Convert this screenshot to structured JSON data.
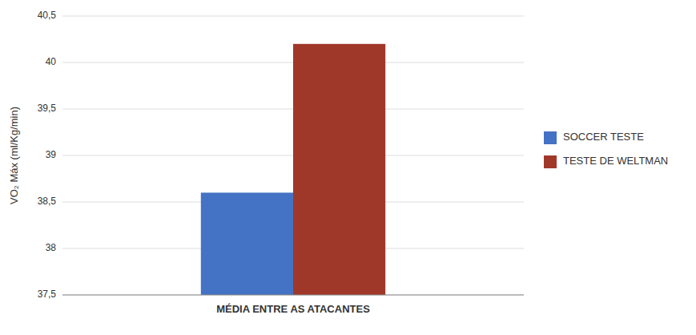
{
  "chart_data": {
    "type": "bar",
    "categories": [
      "MÉDIA ENTRE AS ATACANTES"
    ],
    "series": [
      {
        "name": "SOCCER TESTE",
        "color": "#4472C4",
        "values": [
          38.6
        ]
      },
      {
        "name": "TESTE DE WELTMAN",
        "color": "#A0382A",
        "values": [
          40.2
        ]
      }
    ],
    "y_label": "VO₂ Máx (ml/Kg/min)",
    "ylim": [
      37.5,
      40.5
    ],
    "yticks": [
      {
        "value": 37.5,
        "label": "37,5"
      },
      38,
      {
        "value": 38.5,
        "label": "38,5"
      },
      39,
      {
        "value": 39.5,
        "label": "39,5"
      },
      40,
      {
        "value": 40.5,
        "label": "40,5"
      }
    ],
    "grid": true,
    "legend": "right"
  }
}
